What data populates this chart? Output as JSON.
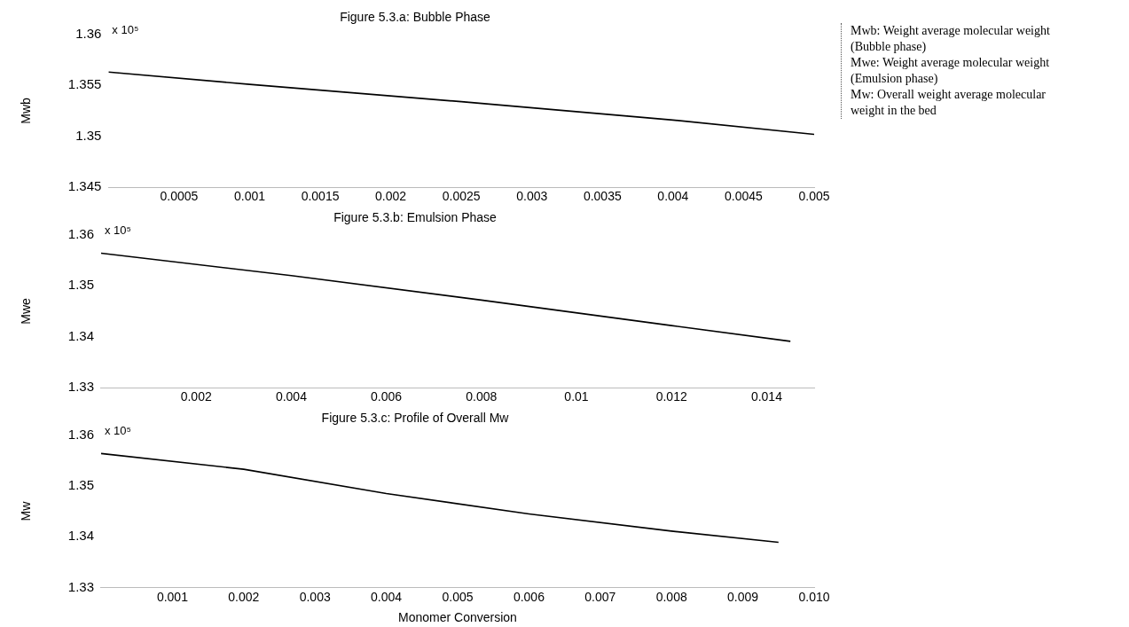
{
  "chart_data": [
    {
      "type": "line",
      "title": "Figure 5.3.a: Bubble Phase",
      "ylabel": "Mwb",
      "annotations": [
        "x 10⁵",
        "Mwb: Weight average molecular weight (Bubble phase)",
        "Mwe: Weight average molecular weight (Emulsion phase)",
        "Mw: Overall weight average molecular weight in the bed"
      ],
      "series": [
        {
          "color": "#000000",
          "x": [
            0,
            0.001,
            0.0025,
            0.004,
            0.005
          ],
          "values": [
            1.3563,
            1.3551,
            1.3534,
            1.3516,
            1.3502
          ]
        }
      ],
      "xlim": [
        0,
        0.005
      ],
      "xticks": [
        0.0005,
        0.001,
        0.0015,
        0.002,
        0.0025,
        0.003,
        0.0035,
        0.004,
        0.0045,
        0.005
      ],
      "ylim": [
        1.345,
        1.36
      ],
      "yticks": [
        1.345,
        1.35,
        1.355,
        1.36
      ],
      "grid": false,
      "legend": false,
      "marker": "none"
    },
    {
      "type": "line",
      "title": "Figure 5.3.b: Emulsion Phase",
      "ylabel": "Mwe",
      "annotations": [
        "x 10⁵"
      ],
      "series": [
        {
          "color": "#000000",
          "x": [
            0,
            0.004,
            0.008,
            0.012,
            0.0145
          ],
          "values": [
            1.3564,
            1.352,
            1.3472,
            1.3422,
            1.3391
          ]
        }
      ],
      "xlim": [
        0,
        0.015
      ],
      "xticks": [
        0.002,
        0.004,
        0.006,
        0.008,
        0.01,
        0.012,
        0.014
      ],
      "ylim": [
        1.33,
        1.36
      ],
      "yticks": [
        1.33,
        1.34,
        1.35,
        1.36
      ],
      "grid": false,
      "legend": false,
      "marker": "none"
    },
    {
      "type": "line",
      "title": "Figure 5.3.c: Profile of Overall Mw",
      "xlabel": "Monomer Conversion",
      "ylabel": "Mw",
      "annotations": [
        "x 10⁵"
      ],
      "series": [
        {
          "color": "#000000",
          "x": [
            0,
            0.002,
            0.004,
            0.006,
            0.008,
            0.0095
          ],
          "values": [
            1.3564,
            1.3533,
            1.3485,
            1.3445,
            1.3411,
            1.3389
          ]
        }
      ],
      "xlim": [
        0,
        0.01
      ],
      "xticks": [
        0.001,
        0.002,
        0.003,
        0.004,
        0.005,
        0.006,
        0.007,
        0.008,
        0.009,
        {
          "value": 0.01,
          "label": "0.010"
        }
      ],
      "ylim": [
        1.33,
        1.36
      ],
      "yticks": [
        1.33,
        1.34,
        1.35,
        1.36
      ],
      "grid": false,
      "legend": false,
      "marker": "none"
    }
  ]
}
